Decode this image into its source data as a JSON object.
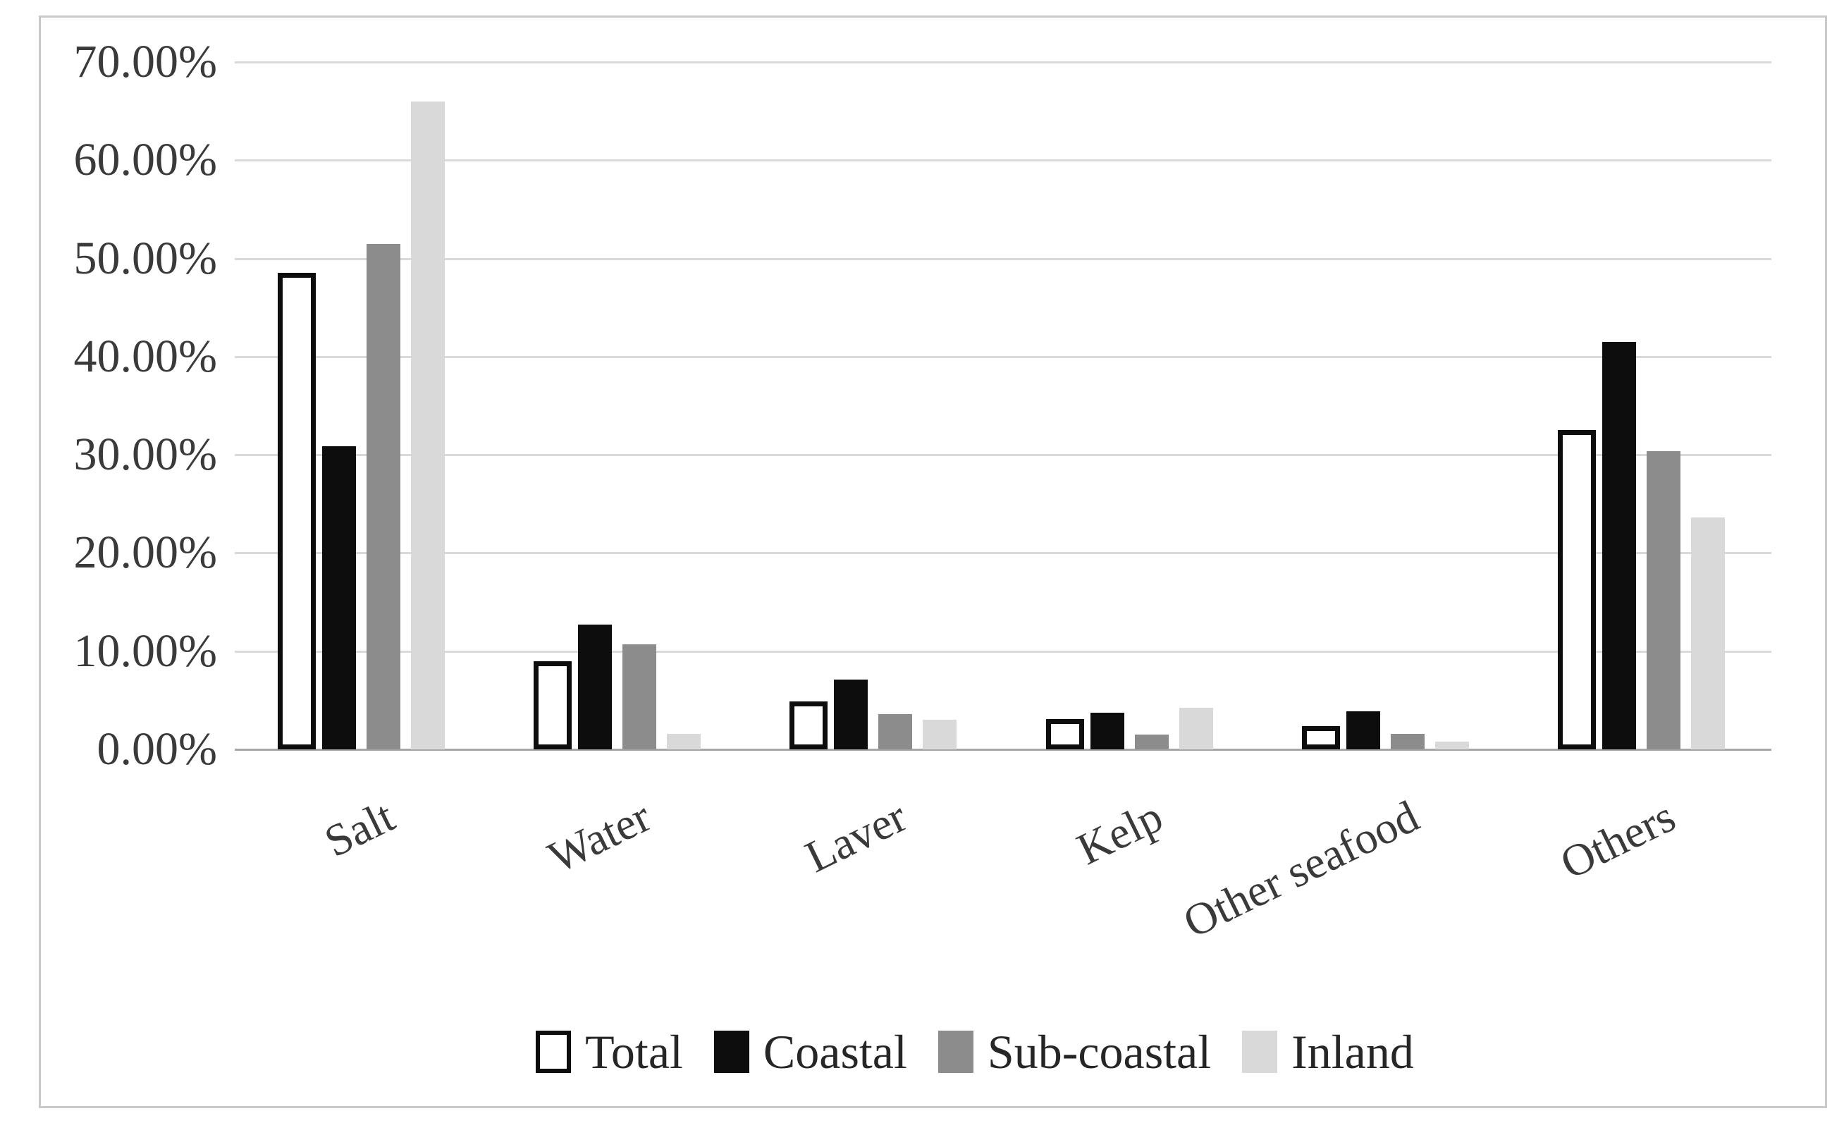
{
  "chart_data": {
    "type": "bar",
    "title": "",
    "xlabel": "",
    "ylabel": "",
    "categories": [
      "Salt",
      "Water",
      "Laver",
      "Kelp",
      "Other seafood",
      "Others"
    ],
    "series": [
      {
        "name": "Total",
        "fill": "#ffffff",
        "border": "#0d0d0d",
        "values": [
          48.5,
          9.0,
          4.9,
          3.1,
          2.4,
          32.5
        ]
      },
      {
        "name": "Coastal",
        "fill": "#0d0d0d",
        "border": "#0d0d0d",
        "values": [
          30.9,
          12.7,
          7.1,
          3.7,
          3.9,
          41.5
        ]
      },
      {
        "name": "Sub-coastal",
        "fill": "#8c8c8c",
        "border": "#8c8c8c",
        "values": [
          51.5,
          10.7,
          3.6,
          1.5,
          1.6,
          30.4
        ]
      },
      {
        "name": "Inland",
        "fill": "#d9d9d9",
        "border": "#d9d9d9",
        "values": [
          66.0,
          1.6,
          3.0,
          4.2,
          0.8,
          23.6
        ]
      }
    ],
    "ylim": [
      0,
      70
    ],
    "ytick_step": 10,
    "yticks": [
      "70.00%",
      "60.00%",
      "50.00%",
      "40.00%",
      "30.00%",
      "20.00%",
      "10.00%",
      "0.00%"
    ],
    "grid": true,
    "legend_position": "bottom"
  },
  "colors": {
    "gridline": "#d9d9d9",
    "axis_line": "#a6a6a6",
    "frame_border": "#c9c9c9",
    "text": "#3a3a3a",
    "background": "#ffffff"
  }
}
